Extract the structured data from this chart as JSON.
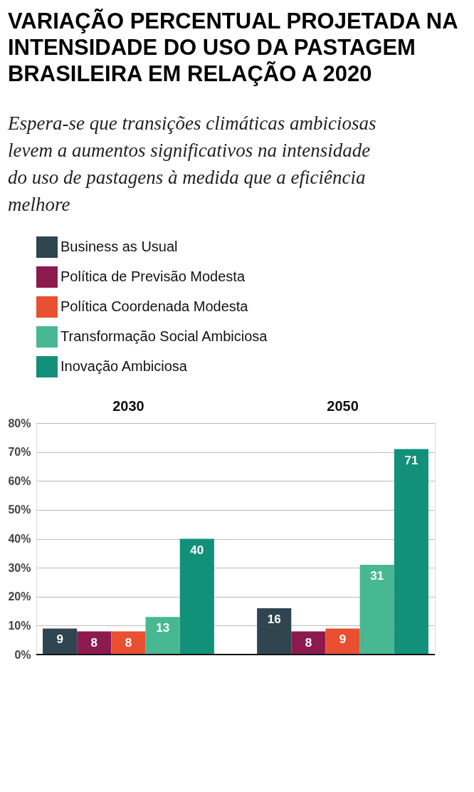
{
  "chart_data": {
    "type": "bar",
    "title": "VARIAÇÃO PERCENTUAL PROJETADA NA INTENSIDADE DO USO DA PASTAGEM BRASILEIRA EM RELAÇÃO A 2020",
    "subtitle": "Espera-se que transições climáticas ambiciosas levem a aumentos significativos na intensidade do uso de pastagens à medida que a eficiência melhore",
    "categories": [
      "2030",
      "2050"
    ],
    "series": [
      {
        "name": "Business as Usual",
        "color": "#2f4550",
        "values": [
          9,
          16
        ]
      },
      {
        "name": "Política de Previsão Modesta",
        "color": "#8c1a4f",
        "values": [
          8,
          8
        ]
      },
      {
        "name": "Política Coordenada Modesta",
        "color": "#e94f30",
        "values": [
          8,
          9
        ]
      },
      {
        "name": "Transformação Social Ambiciosa",
        "color": "#47b891",
        "values": [
          13,
          31
        ]
      },
      {
        "name": "Inovação Ambiciosa",
        "color": "#13907a",
        "values": [
          40,
          71
        ]
      }
    ],
    "ylim": [
      0,
      80
    ],
    "yticks": [
      {
        "value": 0,
        "label": "0%"
      },
      {
        "value": 10,
        "label": "10%"
      },
      {
        "value": 20,
        "label": "20%"
      },
      {
        "value": 30,
        "label": "30%"
      },
      {
        "value": 40,
        "label": "40%"
      },
      {
        "value": 50,
        "label": "50%"
      },
      {
        "value": 60,
        "label": "60%"
      },
      {
        "value": 70,
        "label": "70%"
      },
      {
        "value": 80,
        "label": "80%"
      }
    ],
    "grid": "y",
    "legend": "top left",
    "data_labels": true
  }
}
